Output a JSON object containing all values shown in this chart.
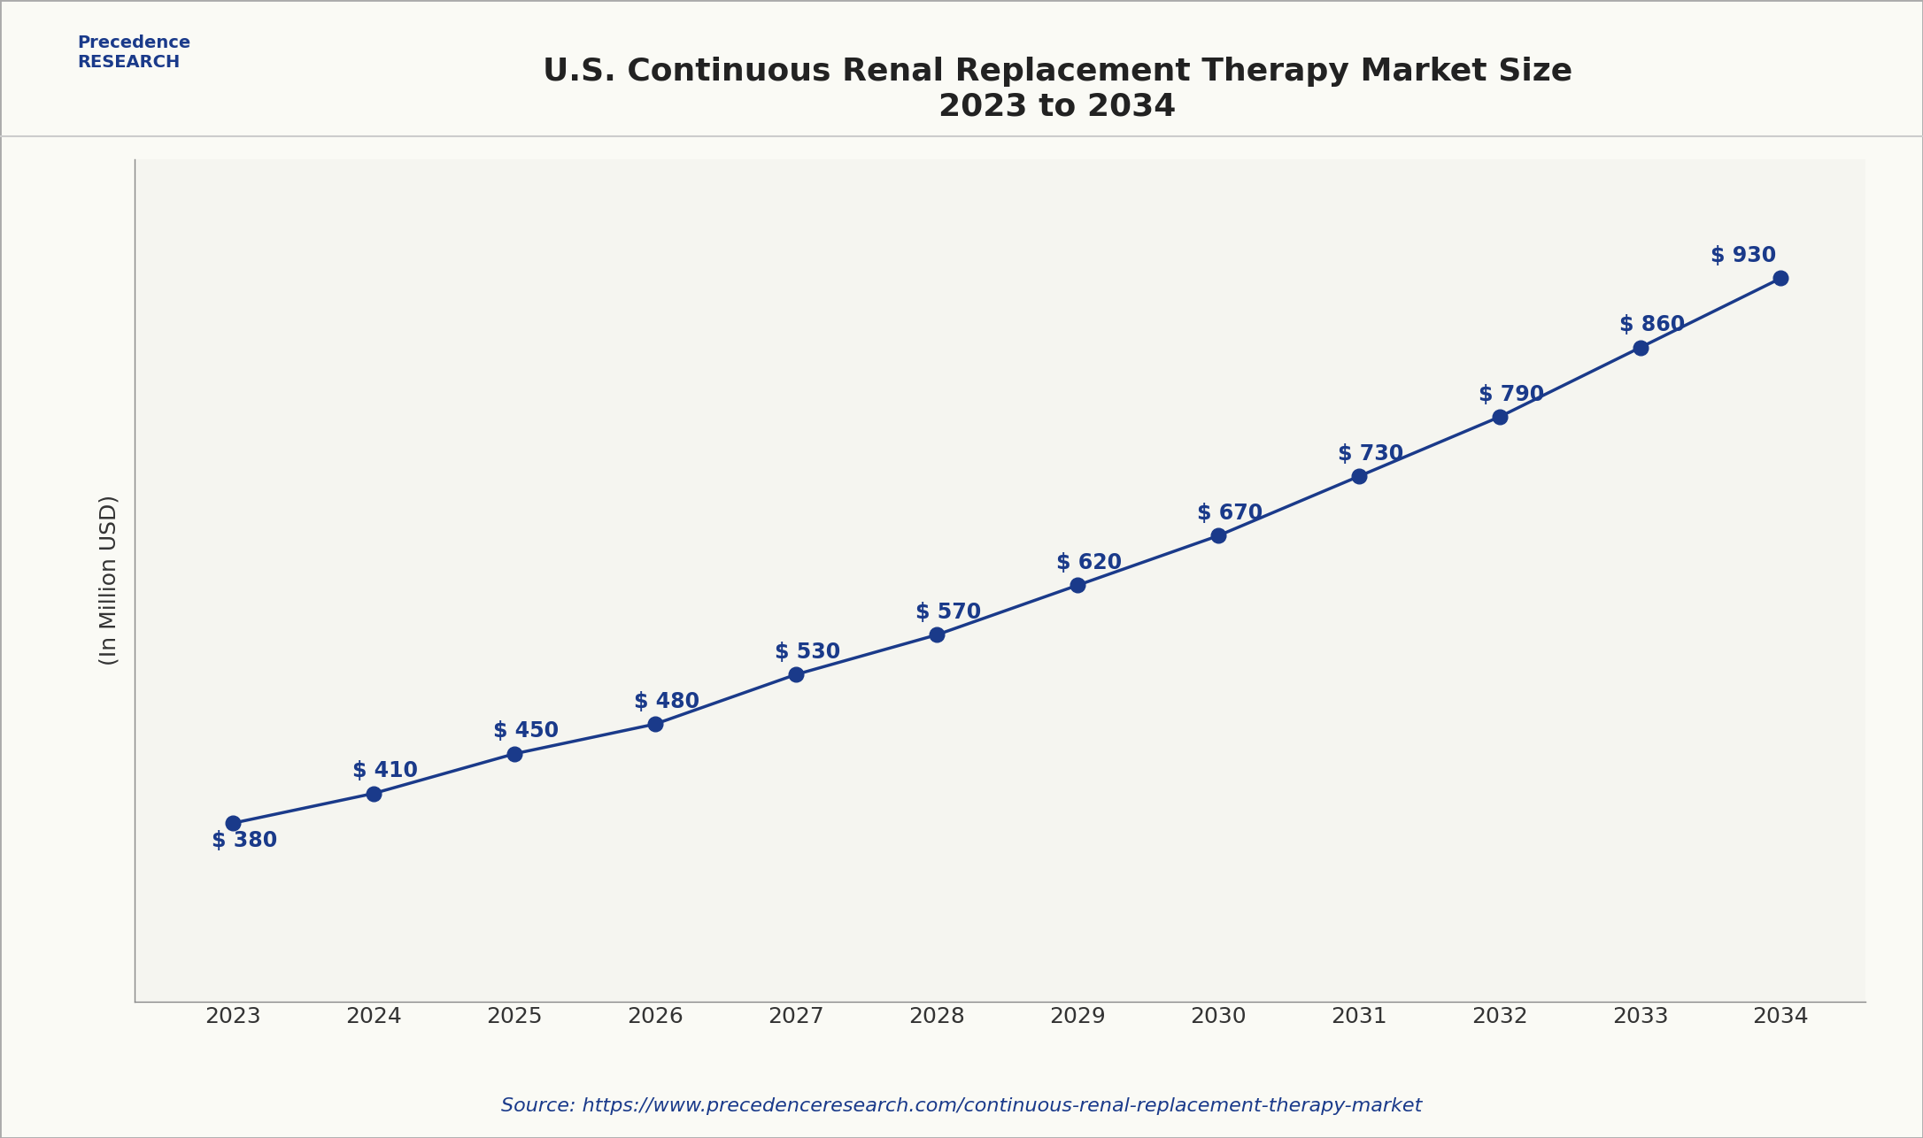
{
  "title_line1": "U.S. Continuous Renal Replacement Therapy Market Size",
  "title_line2": "2023 to 2034",
  "xlabel": "",
  "ylabel": "(In Million USD)",
  "source_text": "Source: https://www.precedenceresearch.com/continuous-renal-replacement-therapy-market",
  "years": [
    2023,
    2024,
    2025,
    2026,
    2027,
    2028,
    2029,
    2030,
    2031,
    2032,
    2033,
    2034
  ],
  "values": [
    380,
    410,
    450,
    480,
    530,
    570,
    620,
    670,
    730,
    790,
    860,
    930
  ],
  "line_color": "#1a3a8a",
  "marker_color": "#1a3a8a",
  "marker_size": 12,
  "line_width": 2.5,
  "annotation_color": "#1a3a8a",
  "annotation_fontsize": 17,
  "title_fontsize": 26,
  "ylabel_fontsize": 18,
  "xlabel_fontsize": 18,
  "tick_fontsize": 18,
  "source_fontsize": 16,
  "bg_color": "#fafaf5",
  "plot_bg_color": "#f5f5f0",
  "border_color": "#cccccc",
  "ylim_min": 200,
  "ylim_max": 1050
}
